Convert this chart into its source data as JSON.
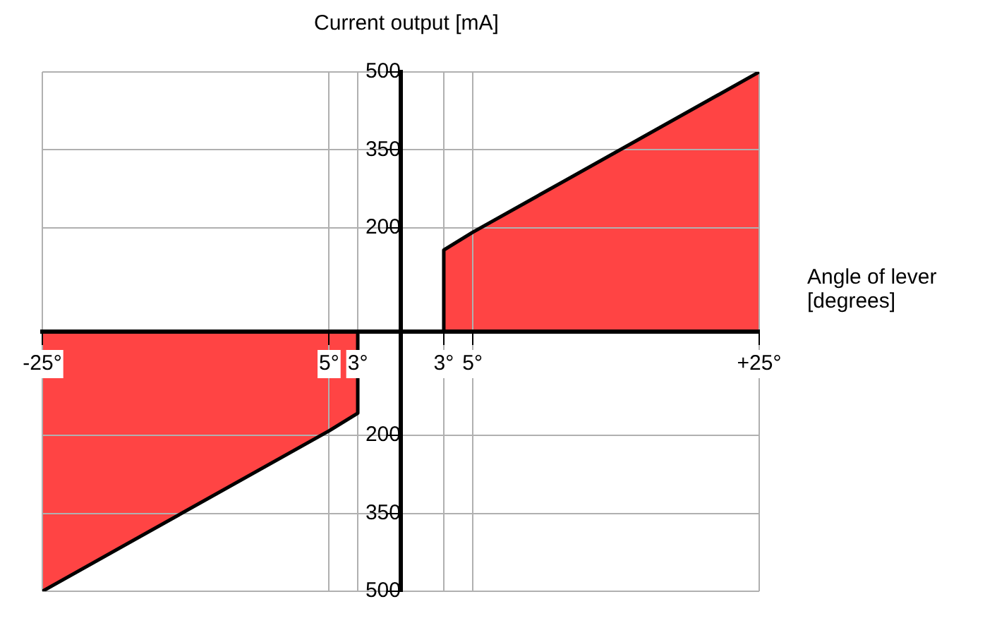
{
  "chart_data": {
    "type": "area",
    "xlabel": "Angle of lever [degrees]",
    "ylabel": "Current output [mA]",
    "series": [
      {
        "color": "#ff4444",
        "x": [
          3,
          3,
          5,
          25
        ],
        "values": [
          0,
          157,
          191,
          500
        ]
      },
      {
        "color": "#ff4444",
        "x": [
          -25,
          -5,
          -3,
          -3
        ],
        "values": [
          -500,
          -191,
          -157,
          0
        ]
      }
    ],
    "xlim": [
      -25,
      25
    ],
    "xticks": [
      {
        "value": -25,
        "label": "-25°"
      },
      {
        "value": -5,
        "label": "5°"
      },
      {
        "value": -3,
        "label": "3°"
      },
      {
        "value": 3,
        "label": "3°"
      },
      {
        "value": 5,
        "label": "5°"
      },
      {
        "value": 25,
        "label": "+25°"
      }
    ],
    "ylim": [
      -500,
      500
    ],
    "yticks": [
      {
        "value": -500,
        "label": "500"
      },
      {
        "value": -350,
        "label": "350"
      },
      {
        "value": -200,
        "label": "200"
      },
      200,
      350,
      500
    ],
    "grid": true,
    "legend": false,
    "marker": "none",
    "line_style": "solid"
  }
}
